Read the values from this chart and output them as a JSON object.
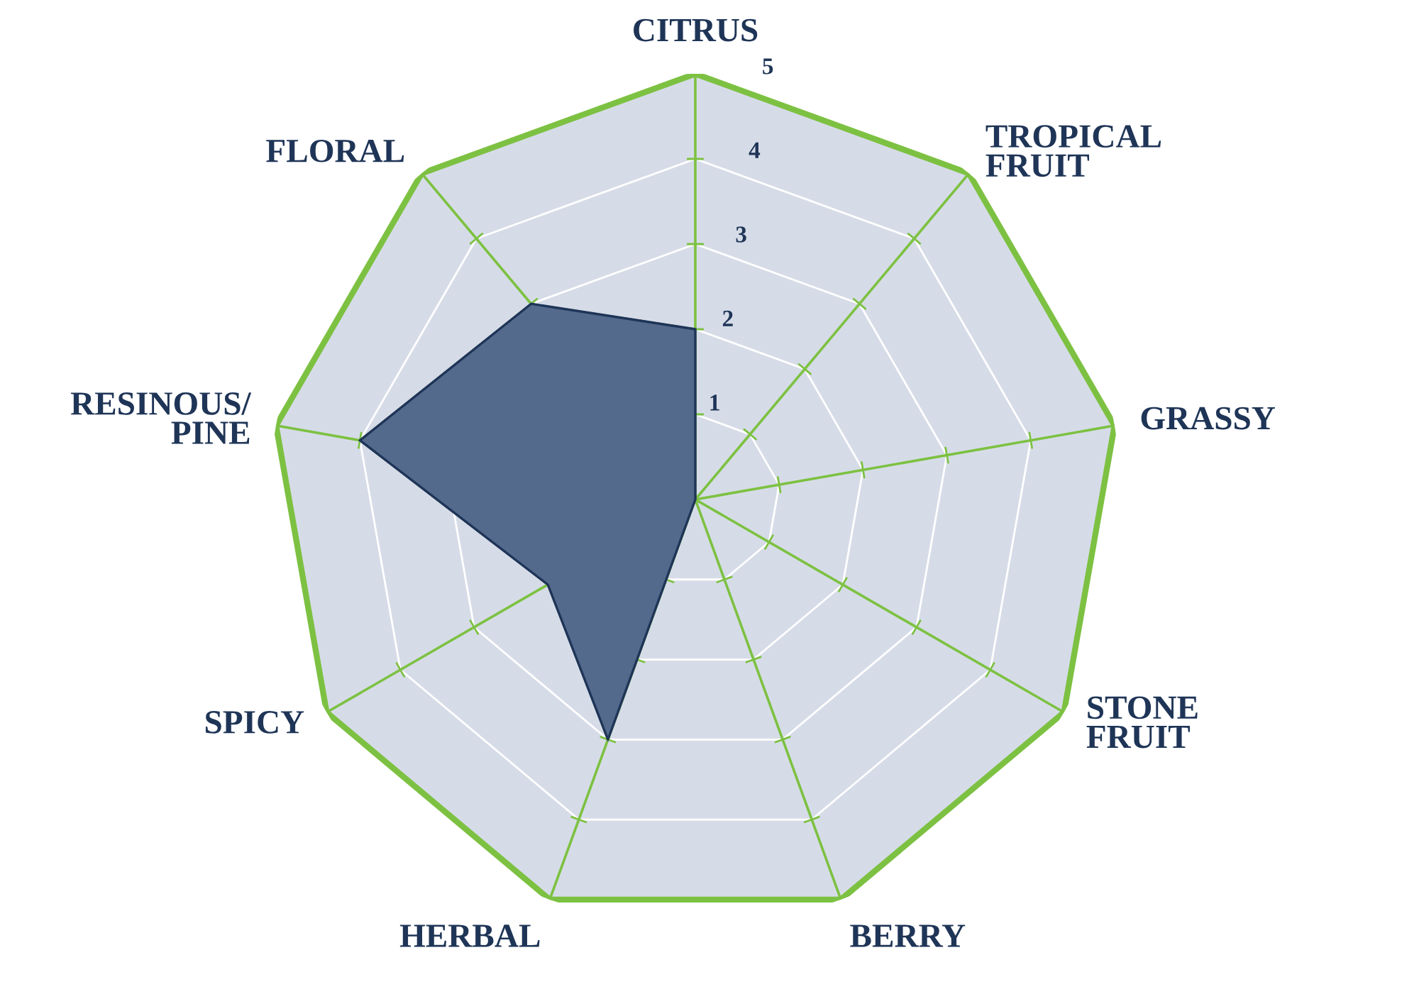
{
  "chart_data": {
    "type": "radar",
    "categories": [
      "CITRUS",
      "TROPICAL\nFRUIT",
      "GRASSY",
      "STONE\nFRUIT",
      "BERRY",
      "HERBAL",
      "SPICY",
      "RESINOUS/\nPINE",
      "FLORAL"
    ],
    "series": [
      {
        "color": "#546a8c",
        "values": [
          2,
          0,
          0,
          0,
          0,
          3,
          2,
          4,
          3
        ]
      }
    ],
    "ylim": [
      0,
      5
    ],
    "yticks": [
      1,
      2,
      3,
      4,
      5
    ],
    "grid": true,
    "legend": false
  }
}
